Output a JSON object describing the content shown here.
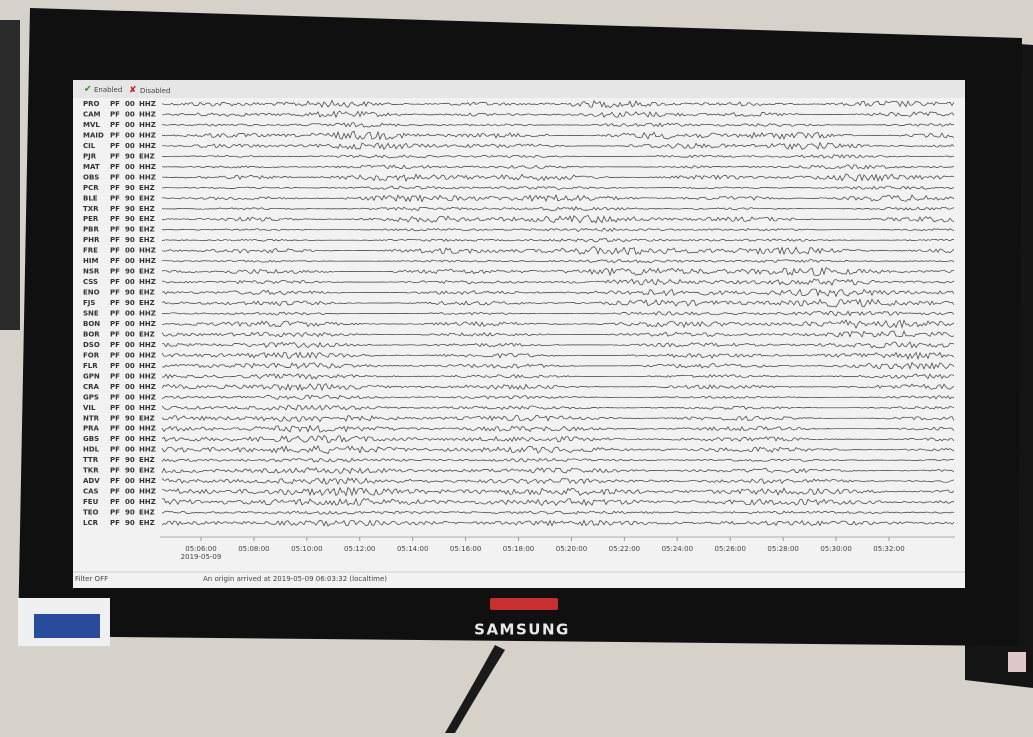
{
  "toolbar": {
    "enabled": "Enabled",
    "disabled": "Disabled"
  },
  "stations": [
    {
      "name": "PRO",
      "network": "PF",
      "location": "00",
      "channel": "HHZ"
    },
    {
      "name": "CAM",
      "network": "PF",
      "location": "00",
      "channel": "HHZ"
    },
    {
      "name": "MVL",
      "network": "PF",
      "location": "00",
      "channel": "HHZ"
    },
    {
      "name": "MAID",
      "network": "PF",
      "location": "00",
      "channel": "HHZ"
    },
    {
      "name": "CIL",
      "network": "PF",
      "location": "00",
      "channel": "HHZ"
    },
    {
      "name": "PJR",
      "network": "PF",
      "location": "90",
      "channel": "EHZ"
    },
    {
      "name": "MAT",
      "network": "PF",
      "location": "00",
      "channel": "HHZ"
    },
    {
      "name": "OBS",
      "network": "PF",
      "location": "00",
      "channel": "HHZ"
    },
    {
      "name": "PCR",
      "network": "PF",
      "location": "90",
      "channel": "EHZ"
    },
    {
      "name": "BLE",
      "network": "PF",
      "location": "90",
      "channel": "EHZ"
    },
    {
      "name": "TXR",
      "network": "PF",
      "location": "90",
      "channel": "EHZ"
    },
    {
      "name": "PER",
      "network": "PF",
      "location": "90",
      "channel": "EHZ"
    },
    {
      "name": "PBR",
      "network": "PF",
      "location": "90",
      "channel": "EHZ"
    },
    {
      "name": "PHR",
      "network": "PF",
      "location": "90",
      "channel": "EHZ"
    },
    {
      "name": "FRE",
      "network": "PF",
      "location": "00",
      "channel": "HHZ"
    },
    {
      "name": "HIM",
      "network": "PF",
      "location": "00",
      "channel": "HHZ"
    },
    {
      "name": "NSR",
      "network": "PF",
      "location": "90",
      "channel": "EHZ"
    },
    {
      "name": "CSS",
      "network": "PF",
      "location": "00",
      "channel": "HHZ"
    },
    {
      "name": "ENO",
      "network": "PF",
      "location": "90",
      "channel": "EHZ"
    },
    {
      "name": "FJS",
      "network": "PF",
      "location": "90",
      "channel": "EHZ"
    },
    {
      "name": "SNE",
      "network": "PF",
      "location": "00",
      "channel": "HHZ"
    },
    {
      "name": "BON",
      "network": "PF",
      "location": "00",
      "channel": "HHZ"
    },
    {
      "name": "BOR",
      "network": "PF",
      "location": "00",
      "channel": "EHZ"
    },
    {
      "name": "DSO",
      "network": "PF",
      "location": "00",
      "channel": "HHZ"
    },
    {
      "name": "FOR",
      "network": "PF",
      "location": "00",
      "channel": "HHZ"
    },
    {
      "name": "FLR",
      "network": "PF",
      "location": "00",
      "channel": "HHZ"
    },
    {
      "name": "GPN",
      "network": "PF",
      "location": "00",
      "channel": "HHZ"
    },
    {
      "name": "CRA",
      "network": "PF",
      "location": "00",
      "channel": "HHZ"
    },
    {
      "name": "GPS",
      "network": "PF",
      "location": "00",
      "channel": "HHZ"
    },
    {
      "name": "VIL",
      "network": "PF",
      "location": "00",
      "channel": "HHZ"
    },
    {
      "name": "NTR",
      "network": "PF",
      "location": "90",
      "channel": "EHZ"
    },
    {
      "name": "PRA",
      "network": "PF",
      "location": "00",
      "channel": "HHZ"
    },
    {
      "name": "GBS",
      "network": "PF",
      "location": "00",
      "channel": "HHZ"
    },
    {
      "name": "HDL",
      "network": "PF",
      "location": "00",
      "channel": "HHZ"
    },
    {
      "name": "TTR",
      "network": "PF",
      "location": "90",
      "channel": "EHZ"
    },
    {
      "name": "TKR",
      "network": "PF",
      "location": "90",
      "channel": "EHZ"
    },
    {
      "name": "ADV",
      "network": "PF",
      "location": "00",
      "channel": "HHZ"
    },
    {
      "name": "CAS",
      "network": "PF",
      "location": "00",
      "channel": "HHZ"
    },
    {
      "name": "FEU",
      "network": "PF",
      "location": "00",
      "channel": "HHZ"
    },
    {
      "name": "TEO",
      "network": "PF",
      "location": "90",
      "channel": "EHZ"
    },
    {
      "name": "LCR",
      "network": "PF",
      "location": "90",
      "channel": "EHZ"
    }
  ],
  "time_axis": {
    "labels": [
      "05:06:00",
      "05:08:00",
      "05:10:00",
      "05:12:00",
      "05:14:00",
      "05:16:00",
      "05:18:00",
      "05:20:00",
      "05:22:00",
      "05:24:00",
      "05:26:00",
      "05:28:00",
      "05:30:00",
      "05:32:00"
    ],
    "date": "2019-05-09"
  },
  "status": {
    "filter": "Filter OFF",
    "message": "An origin arrived at 2019-05-09 06:03:32 (localtime)"
  },
  "monitor": {
    "brand": "SAMSUNG"
  }
}
